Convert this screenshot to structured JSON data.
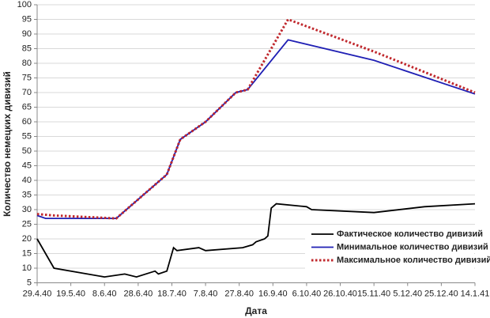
{
  "chart_data": {
    "type": "line",
    "x_label": "Дата",
    "y_label": "Количество немецких дивизий",
    "ylim": [
      5,
      100
    ],
    "yticks": [
      5,
      10,
      15,
      20,
      25,
      30,
      35,
      40,
      45,
      50,
      55,
      60,
      65,
      70,
      75,
      80,
      85,
      90,
      95,
      100
    ],
    "xlim": [
      "1940-04-29",
      "1941-01-14"
    ],
    "xticks": [
      {
        "value": "1940-04-29",
        "label": "29.4.40"
      },
      {
        "value": "1940-05-19",
        "label": "19.5.40"
      },
      {
        "value": "1940-06-08",
        "label": "8.6.40"
      },
      {
        "value": "1940-06-28",
        "label": "28.6.40"
      },
      {
        "value": "1940-07-18",
        "label": "18.7.40"
      },
      {
        "value": "1940-08-07",
        "label": "7.8.40"
      },
      {
        "value": "1940-08-27",
        "label": "27.8.40"
      },
      {
        "value": "1940-09-16",
        "label": "16.9.40"
      },
      {
        "value": "1940-10-06",
        "label": "6.10.40"
      },
      {
        "value": "1940-10-26",
        "label": "26.10.40"
      },
      {
        "value": "1940-11-15",
        "label": "15.11.40"
      },
      {
        "value": "1940-12-05",
        "label": "5.12.40"
      },
      {
        "value": "1940-12-25",
        "label": "25.12.40"
      },
      {
        "value": "1941-01-14",
        "label": "14.1.41"
      }
    ],
    "grid": true,
    "legend": "lower right",
    "series": [
      {
        "name": "Фактическое количество дивизий",
        "color": "#000000",
        "style": "solid",
        "x": [
          "1940-04-29",
          "1940-05-09",
          "1940-06-08",
          "1940-06-20",
          "1940-06-27",
          "1940-07-08",
          "1940-07-10",
          "1940-07-15",
          "1940-07-19",
          "1940-07-21",
          "1940-08-03",
          "1940-08-07",
          "1940-08-29",
          "1940-09-04",
          "1940-09-06",
          "1940-09-11",
          "1940-09-13",
          "1940-09-15",
          "1940-09-18",
          "1940-10-06",
          "1940-10-09",
          "1940-11-15",
          "1940-12-15",
          "1941-01-14"
        ],
        "values": [
          20,
          10,
          7,
          8,
          7,
          9,
          8,
          9,
          17,
          16,
          17,
          16,
          17,
          18,
          19,
          20,
          21,
          30.5,
          32,
          31,
          30,
          29,
          31,
          32
        ]
      },
      {
        "name": "Минимальное количество дивизий",
        "color": "#1f1fb4",
        "style": "solid",
        "x": [
          "1940-04-29",
          "1940-05-04",
          "1940-06-15",
          "1940-07-15",
          "1940-07-23",
          "1940-08-07",
          "1940-08-25",
          "1940-09-01",
          "1940-09-25",
          "1940-11-15",
          "1941-01-14"
        ],
        "values": [
          28,
          27,
          27,
          42,
          54,
          60,
          70,
          71,
          88,
          81,
          69.5
        ]
      },
      {
        "name": "Максимальное количество дивизий",
        "color": "#c0282d",
        "style": "dotted",
        "x": [
          "1940-04-29",
          "1940-05-09",
          "1940-06-15",
          "1940-07-15",
          "1940-07-23",
          "1940-08-07",
          "1940-08-25",
          "1940-09-01",
          "1940-09-25",
          "1940-11-15",
          "1941-01-14"
        ],
        "values": [
          28.5,
          28,
          27,
          42,
          54,
          60,
          70,
          71,
          95,
          84,
          70
        ]
      }
    ]
  }
}
